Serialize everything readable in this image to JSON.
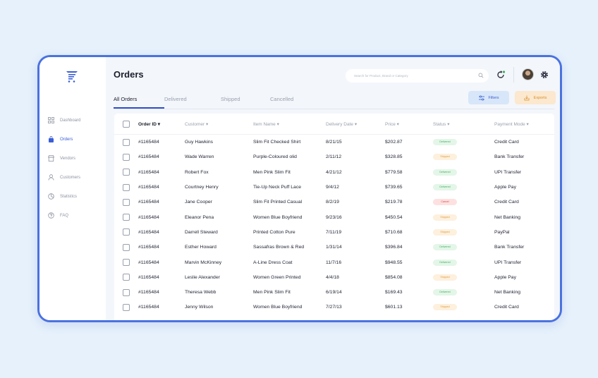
{
  "sidebar": {
    "logo": "cart-list-icon",
    "items": [
      {
        "label": "Dashboard",
        "icon": "grid-icon",
        "active": false
      },
      {
        "label": "Orders",
        "icon": "bag-icon",
        "active": true
      },
      {
        "label": "Vendors",
        "icon": "store-icon",
        "active": false
      },
      {
        "label": "Customers",
        "icon": "user-icon",
        "active": false
      },
      {
        "label": "Statistics",
        "icon": "chart-icon",
        "active": false
      },
      {
        "label": "FAQ",
        "icon": "question-icon",
        "active": false
      }
    ]
  },
  "header": {
    "title": "Orders",
    "search_placeholder": "Search for Product, Brand or Category"
  },
  "tabs": [
    "All Orders",
    "Delivered",
    "Shipped",
    "Cancelled"
  ],
  "actions": {
    "filters": "Filters",
    "exports": "Exports"
  },
  "table": {
    "columns": [
      "Order ID ▾",
      "Customer ▾",
      "Item Name ▾",
      "Delivery Date ▾",
      "Price ▾",
      "Status ▾",
      "Payment Mode ▾"
    ],
    "rows": [
      {
        "id": "#1165484",
        "customer": "Guy Hawkins",
        "item": "Slim Fit Checked Shirt",
        "date": "8/21/15",
        "price": "$202.87",
        "status": "Delivered",
        "payment": "Credit Card"
      },
      {
        "id": "#1165484",
        "customer": "Wade Warren",
        "item": "Purple-Coloured olid",
        "date": "2/11/12",
        "price": "$328.85",
        "status": "Shipped",
        "payment": "Bank Transfer"
      },
      {
        "id": "#1165484",
        "customer": "Robert Fox",
        "item": "Men Pink Slim Fit",
        "date": "4/21/12",
        "price": "$779.58",
        "status": "Delivered",
        "payment": "UPI Transfer"
      },
      {
        "id": "#1165484",
        "customer": "Courtney Henry",
        "item": "Tie-Up Neck Puff Lace",
        "date": "9/4/12",
        "price": "$739.65",
        "status": "Delivered",
        "payment": "Apple Pay"
      },
      {
        "id": "#1165484",
        "customer": "Jane Cooper",
        "item": "Slim Fit Printed Casual",
        "date": "8/2/19",
        "price": "$219.78",
        "status": "Cancel",
        "payment": "Credit Card"
      },
      {
        "id": "#1165484",
        "customer": "Eleanor Pena",
        "item": "Women Blue Boyfriend",
        "date": "9/23/16",
        "price": "$450.54",
        "status": "Shipped",
        "payment": "Net Banking"
      },
      {
        "id": "#1165484",
        "customer": "Darrell Steward",
        "item": "Printed Cotton Pure",
        "date": "7/11/19",
        "price": "$710.68",
        "status": "Shipped",
        "payment": "PayPal"
      },
      {
        "id": "#1165484",
        "customer": "Esther Howard",
        "item": "Sassafras Brown & Red",
        "date": "1/31/14",
        "price": "$396.84",
        "status": "Delivered",
        "payment": "Bank Transfer"
      },
      {
        "id": "#1165484",
        "customer": "Marvin McKinney",
        "item": "A-Line Dress Coat",
        "date": "11/7/16",
        "price": "$948.55",
        "status": "Delivered",
        "payment": "UPI Transfer"
      },
      {
        "id": "#1165484",
        "customer": "Leslie Alexander",
        "item": "Women Green Printed",
        "date": "4/4/18",
        "price": "$854.08",
        "status": "Shipped",
        "payment": "Apple Pay"
      },
      {
        "id": "#1165484",
        "customer": "Theresa Webb",
        "item": "Men Pink Slim Fit",
        "date": "6/19/14",
        "price": "$169.43",
        "status": "Delivered",
        "payment": "Net Banking"
      },
      {
        "id": "#1165484",
        "customer": "Jenny Wilson",
        "item": "Women Blue Boyfriend",
        "date": "7/27/13",
        "price": "$601.13",
        "status": "Shipped",
        "payment": "Credit Card"
      }
    ]
  },
  "colors": {
    "accent": "#3b5fd4",
    "frame": "#4a72e0",
    "delivered": "#3fab5d",
    "shipped": "#e19a3c",
    "cancel": "#e04646",
    "background": "#e6f1fc"
  }
}
